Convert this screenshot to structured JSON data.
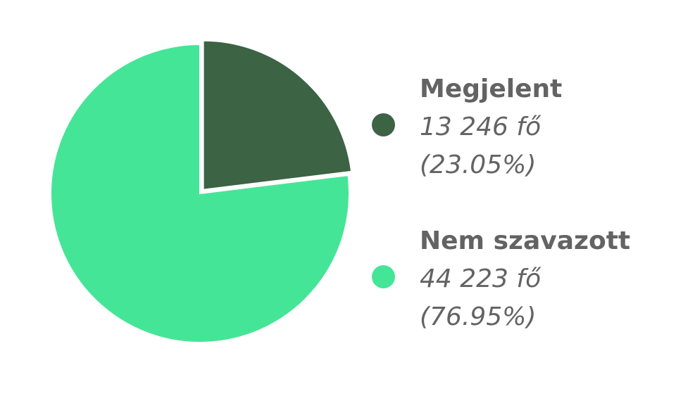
{
  "chart_data": {
    "type": "pie",
    "categories": [
      "Megjelent",
      "Nem szavazott"
    ],
    "values": [
      13246,
      44223
    ],
    "percentages": [
      23.05,
      76.95
    ],
    "colors": [
      "#3b6344",
      "#45e597"
    ],
    "legend": {
      "position": "right",
      "items": [
        {
          "label": "Megjelent",
          "count": "13 246 fő",
          "percent": "(23.05%)"
        },
        {
          "label": "Nem szavazott",
          "count": "44 223 fő",
          "percent": "(76.95%)"
        }
      ]
    }
  }
}
